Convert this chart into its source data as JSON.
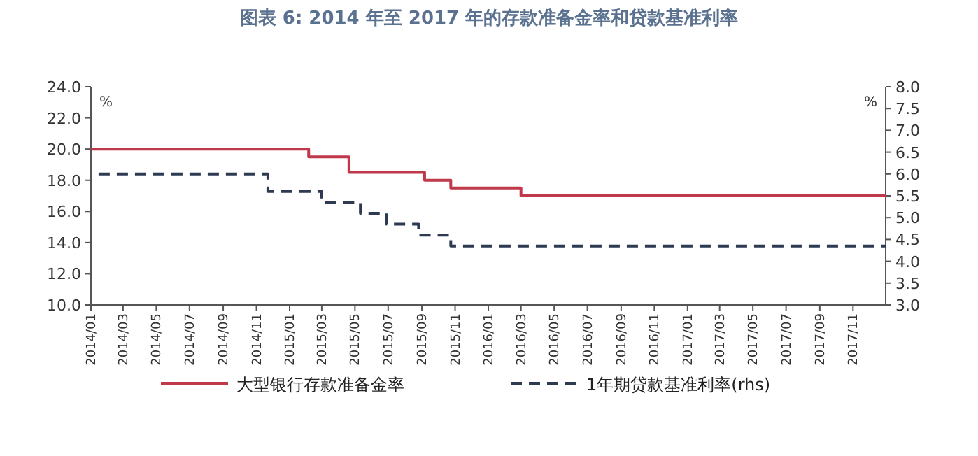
{
  "chart_data": {
    "type": "step",
    "title": "图表 6:  2014 年至 2017 年的存款准备金率和贷款基准利率",
    "ylabel": "%",
    "y2label": "%",
    "xlim": [
      "2014-01-01",
      "2017-12-31"
    ],
    "xticks": [
      {
        "value": "2014-01",
        "label": "2014/01"
      },
      {
        "value": "2014-03",
        "label": "2014/03"
      },
      {
        "value": "2014-05",
        "label": "2014/05"
      },
      {
        "value": "2014-07",
        "label": "2014/07"
      },
      {
        "value": "2014-09",
        "label": "2014/09"
      },
      {
        "value": "2014-11",
        "label": "2014/11"
      },
      {
        "value": "2015-01",
        "label": "2015/01"
      },
      {
        "value": "2015-03",
        "label": "2015/03"
      },
      {
        "value": "2015-05",
        "label": "2015/05"
      },
      {
        "value": "2015-07",
        "label": "2015/07"
      },
      {
        "value": "2015-09",
        "label": "2015/09"
      },
      {
        "value": "2015-11",
        "label": "2015/11"
      },
      {
        "value": "2016-01",
        "label": "2016/01"
      },
      {
        "value": "2016-03",
        "label": "2016/03"
      },
      {
        "value": "2016-05",
        "label": "2016/05"
      },
      {
        "value": "2016-07",
        "label": "2016/07"
      },
      {
        "value": "2016-09",
        "label": "2016/09"
      },
      {
        "value": "2016-11",
        "label": "2016/11"
      },
      {
        "value": "2017-01",
        "label": "2017/01"
      },
      {
        "value": "2017-03",
        "label": "2017/03"
      },
      {
        "value": "2017-05",
        "label": "2017/05"
      },
      {
        "value": "2017-07",
        "label": "2017/07"
      },
      {
        "value": "2017-09",
        "label": "2017/09"
      },
      {
        "value": "2017-11",
        "label": "2017/11"
      }
    ],
    "ylim": [
      10,
      24
    ],
    "yticks": [
      {
        "value": 10,
        "label": "10.0"
      },
      {
        "value": 12,
        "label": "12.0"
      },
      {
        "value": 14,
        "label": "14.0"
      },
      {
        "value": 16,
        "label": "16.0"
      },
      {
        "value": 18,
        "label": "18.0"
      },
      {
        "value": 20,
        "label": "20.0"
      },
      {
        "value": 22,
        "label": "22.0"
      },
      {
        "value": 24,
        "label": "24.0"
      }
    ],
    "y2lim": [
      3,
      8
    ],
    "y2ticks": [
      {
        "value": 3,
        "label": "3.0"
      },
      {
        "value": 3.5,
        "label": "3.5"
      },
      {
        "value": 4,
        "label": "4.0"
      },
      {
        "value": 4.5,
        "label": "4.5"
      },
      {
        "value": 5,
        "label": "5.0"
      },
      {
        "value": 5.5,
        "label": "5.5"
      },
      {
        "value": 6,
        "label": "6.0"
      },
      {
        "value": 6.5,
        "label": "6.5"
      },
      {
        "value": 7,
        "label": "7.0"
      },
      {
        "value": 7.5,
        "label": "7.5"
      },
      {
        "value": 8,
        "label": "8.0"
      }
    ],
    "grid": false,
    "legend": "bottom",
    "series": [
      {
        "name": "大型银行存款准备金率",
        "color": "#c0394b",
        "line_style": "solid",
        "x": [
          "2014-01-01",
          "2015-02-05",
          "2015-04-20",
          "2015-09-06",
          "2015-10-24",
          "2016-03-01",
          "2017-12-31"
        ],
        "values": [
          20,
          19.5,
          18.5,
          18,
          17.5,
          17,
          17
        ]
      },
      {
        "name": "1年期贷款基准利率(rhs)",
        "color": "#2e3a52",
        "line_style": "dashed",
        "axis": "y2",
        "x": [
          "2014-01-15",
          "2014-11-22",
          "2015-03-01",
          "2015-05-11",
          "2015-06-28",
          "2015-08-26",
          "2015-10-24",
          "2017-12-31"
        ],
        "values": [
          6.0,
          5.6,
          5.35,
          5.1,
          4.85,
          4.6,
          4.35,
          4.35
        ]
      }
    ]
  }
}
